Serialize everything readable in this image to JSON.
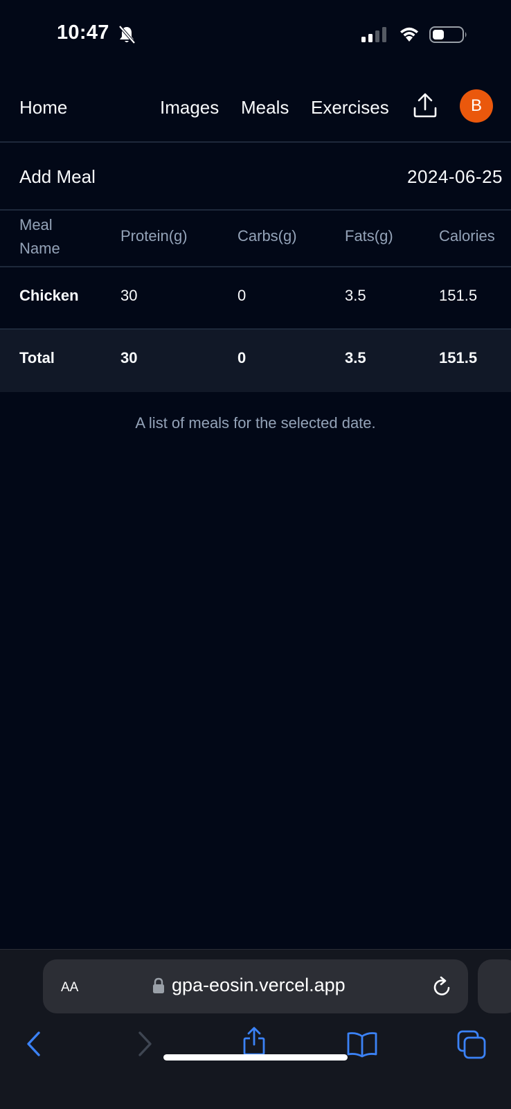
{
  "status_bar": {
    "time": "10:47",
    "icons": [
      "bell-slash-icon",
      "signal-icon",
      "wifi-icon",
      "battery-icon"
    ]
  },
  "nav": {
    "home": "Home",
    "links": [
      "Images",
      "Meals",
      "Exercises"
    ],
    "upload_icon": "upload-icon",
    "avatar_initial": "B",
    "avatar_color": "#ea580c"
  },
  "toolbar": {
    "add_meal": "Add Meal",
    "date": "2024-06-25"
  },
  "table": {
    "headers": [
      "Meal Name",
      "Protein(g)",
      "Carbs(g)",
      "Fats(g)",
      "Calories"
    ],
    "rows": [
      [
        "Chicken",
        "30",
        "0",
        "3.5",
        "151.5"
      ]
    ],
    "total": [
      "Total",
      "30",
      "0",
      "3.5",
      "151.5"
    ],
    "caption": "A list of meals for the selected date."
  },
  "browser": {
    "text_size_label": "AA",
    "url": "gpa-eosin.vercel.app",
    "icons": [
      "lock-icon",
      "reload-icon",
      "back-icon",
      "forward-icon",
      "share-icon",
      "bookmarks-icon",
      "tabs-icon"
    ]
  },
  "colors": {
    "background": "#020817",
    "border": "#1e293b",
    "muted": "#94a3b8",
    "accent": "#3b82f6"
  }
}
